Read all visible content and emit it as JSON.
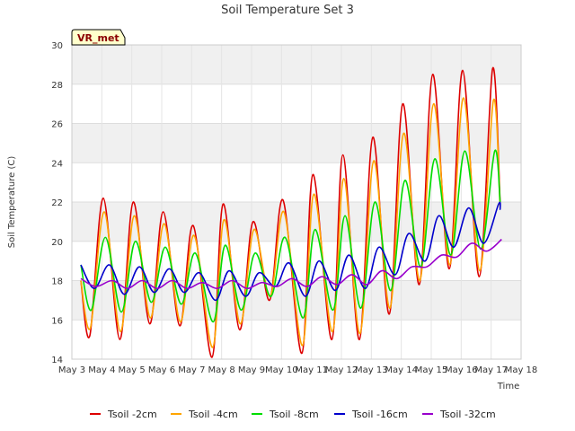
{
  "chart_data": {
    "type": "line",
    "title": "Soil Temperature Set 3",
    "xlabel": "Time",
    "ylabel": "Soil Temperature (C)",
    "ylim": [
      14,
      30
    ],
    "yticks": [
      14,
      16,
      18,
      20,
      22,
      24,
      26,
      28,
      30
    ],
    "xlim": [
      3,
      18
    ],
    "xticks": [
      {
        "x": 3,
        "label": "May 3"
      },
      {
        "x": 4,
        "label": "May 4"
      },
      {
        "x": 5,
        "label": "May 5"
      },
      {
        "x": 6,
        "label": "May 6"
      },
      {
        "x": 7,
        "label": "May 7"
      },
      {
        "x": 8,
        "label": "May 8"
      },
      {
        "x": 9,
        "label": "May 9"
      },
      {
        "x": 10,
        "label": "May 10"
      },
      {
        "x": 11,
        "label": "May 11"
      },
      {
        "x": 12,
        "label": "May 12"
      },
      {
        "x": 13,
        "label": "May 13"
      },
      {
        "x": 14,
        "label": "May 14"
      },
      {
        "x": 15,
        "label": "May 15"
      },
      {
        "x": 16,
        "label": "May 16"
      },
      {
        "x": 17,
        "label": "May 17"
      },
      {
        "x": 18,
        "label": "May 18"
      }
    ],
    "grid": true,
    "background_bands": true,
    "legend_position": "bottom",
    "station_label": "VR_met",
    "series": [
      {
        "name": "Tsoil -2cm",
        "color": "#dd0000",
        "x": [
          3.3,
          3.6,
          4.05,
          4.6,
          5.05,
          5.6,
          6.05,
          6.6,
          7.05,
          7.68,
          8.05,
          8.6,
          9.05,
          9.6,
          10.05,
          10.68,
          11.05,
          11.68,
          12.05,
          12.6,
          13.05,
          13.6,
          14.05,
          14.6,
          15.05,
          15.6,
          16.05,
          16.6,
          17.05,
          17.3
        ],
        "y": [
          18.0,
          15.2,
          22.2,
          15.0,
          22.0,
          15.8,
          21.5,
          15.7,
          20.8,
          14.1,
          21.9,
          15.5,
          21.0,
          17.0,
          22.1,
          14.3,
          23.4,
          15.0,
          24.4,
          15.0,
          25.3,
          16.3,
          27.0,
          17.8,
          28.5,
          18.6,
          28.7,
          18.2,
          28.8,
          22.0
        ]
      },
      {
        "name": "Tsoil -4cm",
        "color": "#ffa500",
        "x": [
          3.3,
          3.62,
          4.08,
          4.62,
          5.08,
          5.62,
          6.08,
          6.62,
          7.08,
          7.7,
          8.08,
          8.62,
          9.08,
          9.62,
          10.08,
          10.7,
          11.08,
          11.7,
          12.08,
          12.62,
          13.08,
          13.62,
          14.08,
          14.62,
          15.08,
          15.62,
          16.08,
          16.62,
          17.08,
          17.3
        ],
        "y": [
          18.0,
          15.6,
          21.5,
          15.4,
          21.3,
          16.1,
          20.9,
          15.9,
          20.3,
          14.6,
          21.1,
          15.8,
          20.6,
          17.2,
          21.5,
          14.7,
          22.4,
          15.4,
          23.2,
          15.3,
          24.1,
          16.6,
          25.5,
          18.0,
          27.0,
          18.8,
          27.3,
          18.5,
          27.2,
          21.7
        ]
      },
      {
        "name": "Tsoil -8cm",
        "color": "#00dd00",
        "x": [
          3.3,
          3.65,
          4.12,
          4.65,
          5.12,
          5.65,
          6.12,
          6.65,
          7.12,
          7.72,
          8.12,
          8.65,
          9.12,
          9.65,
          10.12,
          10.72,
          11.12,
          11.72,
          12.12,
          12.65,
          13.12,
          13.65,
          14.12,
          14.65,
          15.12,
          15.65,
          16.12,
          16.65,
          17.12,
          17.3
        ],
        "y": [
          18.8,
          16.5,
          20.2,
          16.4,
          20.0,
          16.9,
          19.7,
          16.8,
          19.4,
          15.9,
          19.8,
          16.5,
          19.4,
          17.2,
          20.2,
          16.1,
          20.6,
          16.5,
          21.3,
          16.6,
          22.0,
          17.5,
          23.1,
          18.7,
          24.2,
          19.3,
          24.6,
          19.6,
          24.6,
          22.0
        ]
      },
      {
        "name": "Tsoil -16cm",
        "color": "#0000cc",
        "x": [
          3.3,
          3.75,
          4.25,
          4.75,
          5.25,
          5.75,
          6.25,
          6.75,
          7.25,
          7.8,
          8.25,
          8.8,
          9.25,
          9.8,
          10.25,
          10.8,
          11.25,
          11.8,
          12.25,
          12.8,
          13.25,
          13.8,
          14.25,
          14.8,
          15.25,
          15.75,
          16.25,
          16.75,
          17.25,
          17.3
        ],
        "y": [
          18.8,
          17.6,
          18.8,
          17.3,
          18.7,
          17.4,
          18.6,
          17.4,
          18.4,
          17.0,
          18.5,
          17.2,
          18.4,
          17.7,
          18.9,
          17.2,
          19.0,
          17.5,
          19.3,
          17.6,
          19.7,
          18.3,
          20.4,
          19.0,
          21.3,
          19.7,
          21.7,
          19.9,
          21.9,
          21.6
        ]
      },
      {
        "name": "Tsoil -32cm",
        "color": "#9900cc",
        "x": [
          3.3,
          3.8,
          4.35,
          4.85,
          5.35,
          5.85,
          6.35,
          6.85,
          7.35,
          7.85,
          8.35,
          8.85,
          9.35,
          9.85,
          10.35,
          10.85,
          11.35,
          11.85,
          12.35,
          12.85,
          13.35,
          13.85,
          14.35,
          14.85,
          15.35,
          15.85,
          16.35,
          16.85,
          17.35
        ],
        "y": [
          18.1,
          17.7,
          18.0,
          17.6,
          18.0,
          17.6,
          18.0,
          17.6,
          17.9,
          17.6,
          18.0,
          17.6,
          17.9,
          17.7,
          18.1,
          17.7,
          18.2,
          17.8,
          18.3,
          17.8,
          18.5,
          18.1,
          18.7,
          18.7,
          19.3,
          19.2,
          19.9,
          19.5,
          20.1
        ]
      }
    ]
  }
}
